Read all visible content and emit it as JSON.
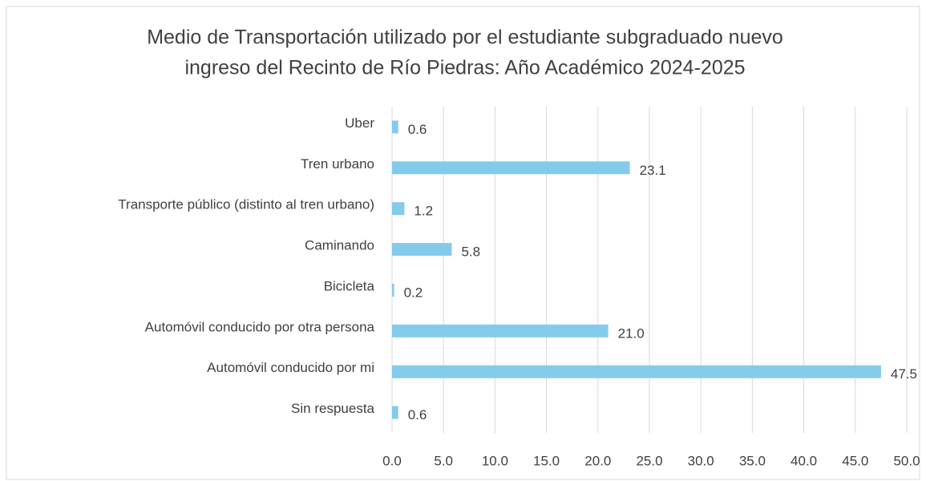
{
  "chart_data": {
    "type": "bar",
    "orientation": "horizontal",
    "title": [
      "Medio de Transportación utilizado por el estudiante subgraduado nuevo",
      "ingreso del Recinto de Río Piedras: Año Académico 2024-2025"
    ],
    "categories": [
      "Uber",
      "Tren urbano",
      "Transporte público (distinto al tren urbano)",
      "Caminando",
      "Bicicleta",
      "Automóvil conducido por otra persona",
      "Automóvil conducido por mi",
      "Sin respuesta"
    ],
    "values": [
      0.6,
      23.1,
      1.2,
      5.8,
      0.2,
      21.0,
      47.5,
      0.6
    ],
    "value_labels": [
      "0.6",
      "23.1",
      "1.2",
      "5.8",
      "0.2",
      "21.0",
      "47.5",
      "0.6"
    ],
    "color": "#84cbeb",
    "xlim": [
      0,
      50
    ],
    "xticks": [
      {
        "value": 0,
        "label": "0.0"
      },
      {
        "value": 5,
        "label": "5.0"
      },
      {
        "value": 10,
        "label": "10.0"
      },
      {
        "value": 15,
        "label": "15.0"
      },
      {
        "value": 20,
        "label": "20.0"
      },
      {
        "value": 25,
        "label": "25.0"
      },
      {
        "value": 30,
        "label": "30.0"
      },
      {
        "value": 35,
        "label": "35.0"
      },
      {
        "value": 40,
        "label": "40.0"
      },
      {
        "value": 45,
        "label": "45.0"
      },
      {
        "value": 50,
        "label": "50.0"
      }
    ],
    "grid": true
  }
}
